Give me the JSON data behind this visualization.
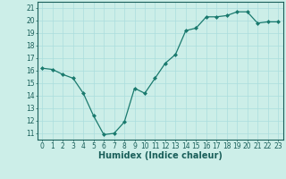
{
  "x": [
    0,
    1,
    2,
    3,
    4,
    5,
    6,
    7,
    8,
    9,
    10,
    11,
    12,
    13,
    14,
    15,
    16,
    17,
    18,
    19,
    20,
    21,
    22,
    23
  ],
  "y": [
    16.2,
    16.1,
    15.7,
    15.4,
    14.2,
    12.4,
    10.9,
    11.0,
    11.9,
    14.6,
    14.2,
    15.4,
    16.6,
    17.3,
    19.2,
    19.4,
    20.3,
    20.3,
    20.4,
    20.7,
    20.7,
    19.8,
    19.9,
    19.9
  ],
  "line_color": "#1a7a6e",
  "marker": "D",
  "marker_size": 2.0,
  "bg_color": "#cceee8",
  "grid_color": "#aadddd",
  "xlabel": "Humidex (Indice chaleur)",
  "xlim": [
    -0.5,
    23.5
  ],
  "ylim": [
    10.5,
    21.5
  ],
  "yticks": [
    11,
    12,
    13,
    14,
    15,
    16,
    17,
    18,
    19,
    20,
    21
  ],
  "xticks": [
    0,
    1,
    2,
    3,
    4,
    5,
    6,
    7,
    8,
    9,
    10,
    11,
    12,
    13,
    14,
    15,
    16,
    17,
    18,
    19,
    20,
    21,
    22,
    23
  ],
  "title_color": "#1a5f5a",
  "xlabel_fontsize": 7.0,
  "tick_fontsize": 5.5,
  "linewidth": 0.9
}
